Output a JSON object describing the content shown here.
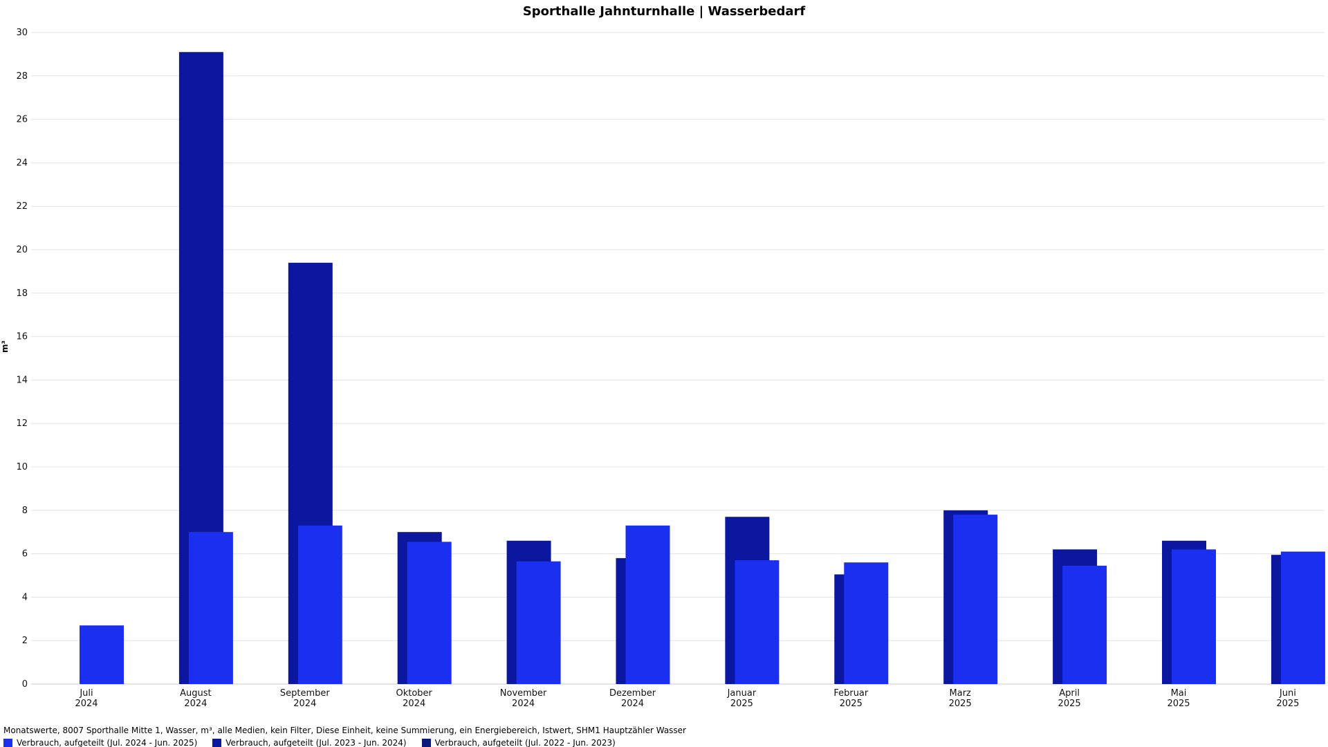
{
  "chart_data": {
    "type": "bar",
    "title": "Sporthalle Jahnturnhalle | Wasserbedarf",
    "ylabel": "m³",
    "ylim": [
      0,
      30
    ],
    "yticks": [
      0,
      2,
      4,
      6,
      8,
      10,
      12,
      14,
      16,
      18,
      20,
      22,
      24,
      26,
      28,
      30
    ],
    "grid": true,
    "legend_position": "bottom-left",
    "categories": [
      {
        "month": "Juli",
        "year": "2024"
      },
      {
        "month": "August",
        "year": "2024"
      },
      {
        "month": "September",
        "year": "2024"
      },
      {
        "month": "Oktober",
        "year": "2024"
      },
      {
        "month": "November",
        "year": "2024"
      },
      {
        "month": "Dezember",
        "year": "2024"
      },
      {
        "month": "Januar",
        "year": "2025"
      },
      {
        "month": "Februar",
        "year": "2025"
      },
      {
        "month": "Marz",
        "year": "2025"
      },
      {
        "month": "April",
        "year": "2025"
      },
      {
        "month": "Mai",
        "year": "2025"
      },
      {
        "month": "Juni",
        "year": "2025"
      }
    ],
    "series": [
      {
        "name": "Verbrauch, aufgeteilt (Jul. 2022 - Jun. 2023)",
        "color": "#0a1a7a",
        "values": [
          null,
          null,
          null,
          null,
          null,
          null,
          null,
          null,
          null,
          null,
          null,
          null
        ]
      },
      {
        "name": "Verbrauch, aufgeteilt (Jul. 2023 - Jun. 2024)",
        "color": "#0a179e",
        "values": [
          null,
          29.1,
          19.4,
          7.0,
          6.6,
          5.8,
          7.7,
          5.05,
          8.0,
          6.2,
          6.6,
          5.95
        ]
      },
      {
        "name": "Verbrauch, aufgeteilt (Jul. 2024 - Jun. 2025)",
        "color": "#1a2ff0",
        "values": [
          2.7,
          7.0,
          7.3,
          6.55,
          5.65,
          7.3,
          5.7,
          5.6,
          7.8,
          5.45,
          6.2,
          6.1
        ]
      }
    ]
  },
  "footer": {
    "description": "Monatswerte, 8007 Sporthalle Mitte 1, Wasser, m³, alle Medien, kein Filter, Diese Einheit, keine Summierung, ein Energiebereich, Istwert, SHM1 Hauptzähler Wasser"
  },
  "legend": [
    {
      "label": "Verbrauch, aufgeteilt (Jul. 2024 - Jun. 2025)",
      "color": "#1a2ff0"
    },
    {
      "label": "Verbrauch, aufgeteilt (Jul. 2023 - Jun. 2024)",
      "color": "#0a179e"
    },
    {
      "label": "Verbrauch, aufgeteilt (Jul. 2022 - Jun. 2023)",
      "color": "#0a1a7a"
    }
  ]
}
